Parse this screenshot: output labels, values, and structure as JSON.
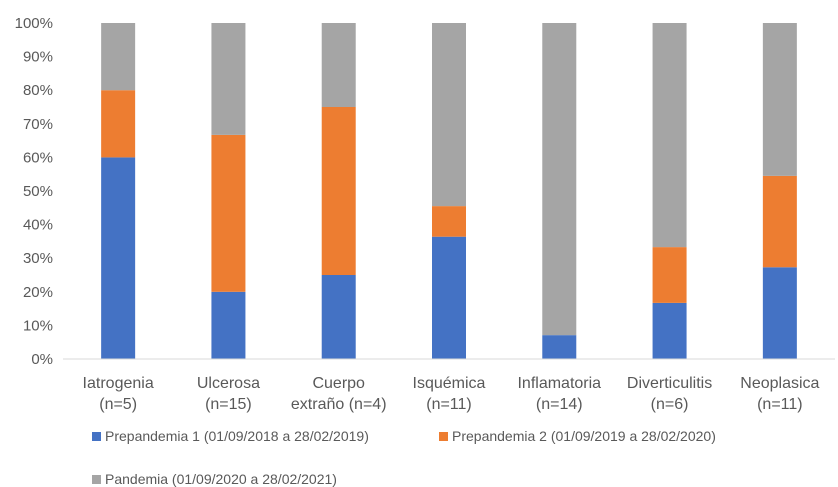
{
  "chart_data": {
    "type": "bar",
    "stacked": "percent",
    "categories": [
      [
        "Iatrogenia",
        "(n=5)"
      ],
      [
        "Ulcerosa",
        "(n=15)"
      ],
      [
        "Cuerpo",
        "extraño (n=4)"
      ],
      [
        "Isquémica",
        "(n=11)"
      ],
      [
        "Inflamatoria",
        "(n=14)"
      ],
      [
        "Diverticulitis",
        "(n=6)"
      ],
      [
        "Neoplasica",
        "(n=11)"
      ]
    ],
    "series": [
      {
        "name": "Prepandemia 1 (01/09/2018 a 28/02/2019)",
        "color": "#4472C4",
        "values": [
          60,
          20,
          25,
          36.4,
          7.1,
          16.7,
          27.3
        ]
      },
      {
        "name": "Prepandemia 2 (01/09/2019 a 28/02/2020)",
        "color": "#ED7D31",
        "values": [
          20,
          46.7,
          50,
          9.1,
          0,
          16.6,
          27.2
        ]
      },
      {
        "name": "Pandemia (01/09/2020 a 28/02/2021)",
        "color": "#A5A5A5",
        "values": [
          20,
          33.3,
          25,
          54.5,
          92.9,
          66.7,
          45.5
        ]
      }
    ],
    "yticks": [
      "0%",
      "10%",
      "20%",
      "30%",
      "40%",
      "50%",
      "60%",
      "70%",
      "80%",
      "90%",
      "100%"
    ],
    "ylim": [
      0,
      100
    ],
    "grid": false,
    "legend_position": "bottom",
    "title": "",
    "xlabel": "",
    "ylabel": ""
  }
}
